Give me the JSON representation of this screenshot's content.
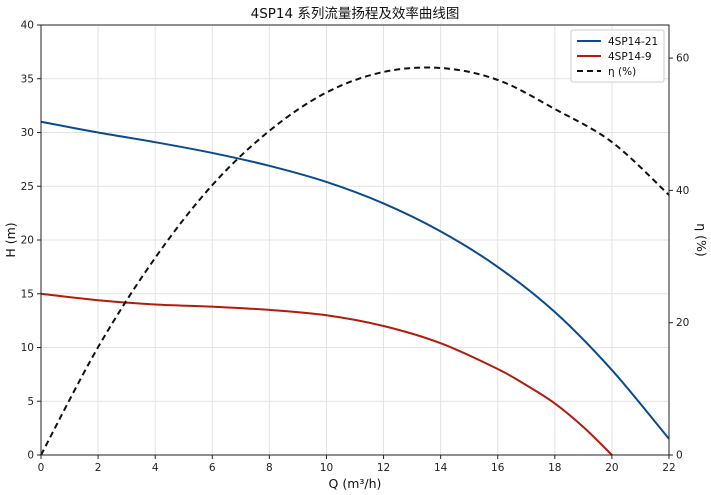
{
  "chart_data": {
    "type": "line",
    "title": "4SP14 系列流量扬程及效率曲线图",
    "xlabel": "Q (m³/h)",
    "ylabel": "H (m)",
    "y2label": "η (%)",
    "xlim": [
      0,
      22
    ],
    "ylim": [
      0,
      40
    ],
    "y2lim": [
      0,
      65
    ],
    "xticks": [
      0,
      2,
      4,
      6,
      8,
      10,
      12,
      14,
      16,
      18,
      20,
      22
    ],
    "yticks": [
      0,
      5,
      10,
      15,
      20,
      25,
      30,
      35,
      40
    ],
    "y2ticks": [
      0,
      20,
      40,
      60
    ],
    "grid": true,
    "legend_position": "top-right",
    "series": [
      {
        "name": "4SP14-21",
        "axis": "left",
        "color": "#0a4a8f",
        "style": "solid",
        "x": [
          0,
          2,
          4,
          6,
          8,
          10,
          12,
          14,
          16,
          18,
          20,
          22
        ],
        "y": [
          31.0,
          30.0,
          29.1,
          28.1,
          26.9,
          25.4,
          23.4,
          20.8,
          17.5,
          13.3,
          7.9,
          1.5
        ]
      },
      {
        "name": "4SP14-9",
        "axis": "left",
        "color": "#b31b0f",
        "style": "solid",
        "x": [
          0,
          2,
          4,
          6,
          8,
          10,
          12,
          14,
          16,
          17,
          18,
          19,
          20
        ],
        "y": [
          15.0,
          14.4,
          14.0,
          13.8,
          13.5,
          13.0,
          12.0,
          10.4,
          8.0,
          6.5,
          4.8,
          2.6,
          0.0
        ]
      },
      {
        "name": "η (%)",
        "axis": "right",
        "color": "#111111",
        "style": "dashed",
        "x": [
          0,
          2,
          4,
          6,
          8,
          10,
          12,
          14,
          16,
          18,
          20,
          22
        ],
        "y": [
          0,
          16.3,
          29.8,
          40.8,
          49.0,
          54.8,
          57.9,
          58.5,
          56.7,
          52.3,
          47.3,
          39.3
        ]
      }
    ]
  }
}
